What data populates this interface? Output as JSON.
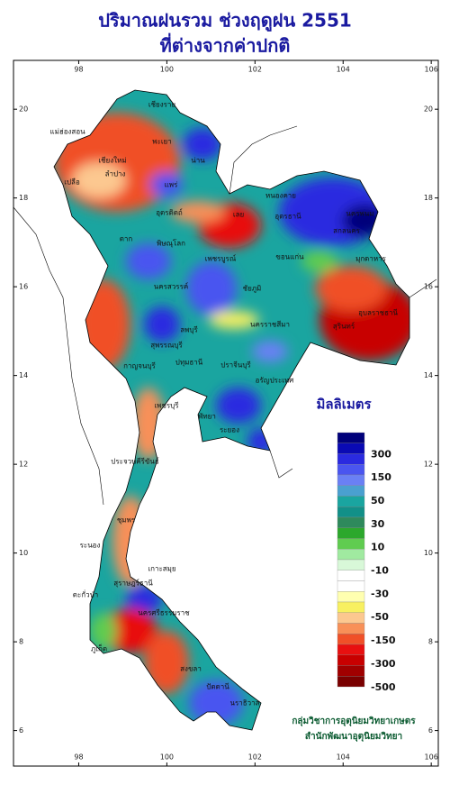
{
  "header": {
    "title": "ปริมาณฝนรวม ช่วงฤดูฝน 2551",
    "subtitle": "ที่ต่างจากค่าปกติ"
  },
  "map": {
    "lonlim": [
      96.52,
      106.16
    ],
    "latlim": [
      21.1,
      5.2
    ],
    "lon_ticks": [
      98,
      100,
      102,
      104,
      106
    ],
    "lat_ticks": [
      20,
      18,
      16,
      14,
      12,
      10,
      8,
      6
    ],
    "places": [
      "เชียงราย",
      "แม่ฮ่องสอน",
      "เชียงใหม่",
      "พะเยา",
      "น่าน",
      "ลำปาง",
      "แพร่",
      "เปลือ",
      "อุตรดิตถ์",
      "หนองคาย",
      "อุดรธานี",
      "นครพนม",
      "สกลนคร",
      "เลย",
      "ตาก",
      "พิษณุโลก",
      "มุกดาหาร",
      "ขอนแก่น",
      "เพชรบูรณ์",
      "นครสวรรค์",
      "ชัยภูมิ",
      "อุบลราชธานี",
      "ลพบุรี",
      "นครราชสีมา",
      "สุรินทร์",
      "สุพรรณบุรี",
      "กาญจนบุรี",
      "ปทุมธานี",
      "ปราจีนบุรี",
      "อรัญประเทศ",
      "เพชรบุรี",
      "พัทยา",
      "ระยอง",
      "ประจวบคีรีขันธ์",
      "ชุมพร",
      "ระนอง",
      "เกาะสมุย",
      "สุราษฎร์ธานี",
      "ตะกั่วป่า",
      "ภูเก็ต",
      "นครศรีธรรมราช",
      "สงขลา",
      "ปัตตานี",
      "นราธิวาส"
    ]
  },
  "legend": {
    "title": "มิลลิเมตร",
    "colors": [
      "#00007a",
      "#0a0ab4",
      "#2a2ae0",
      "#4a55f0",
      "#6a80f5",
      "#4aa0d0",
      "#1aa5a0",
      "#129088",
      "#2e8a5c",
      "#2ca82c",
      "#60cc50",
      "#a0eaa0",
      "#d8f8d8",
      "#ffffff",
      "#ffffff",
      "#ffffb0",
      "#f8f060",
      "#fcc890",
      "#f89058",
      "#f05028",
      "#e81010",
      "#c80000",
      "#a00000",
      "#7a0000"
    ],
    "labels": [
      300,
      150,
      50,
      30,
      10,
      -10,
      -30,
      -50,
      -150,
      -300,
      -500
    ]
  },
  "credit": [
    "กลุ่มวิชาการอุตุนิยมวิทยาเกษตร",
    "สำนักพัฒนาอุตุนิยมวิทยา"
  ]
}
